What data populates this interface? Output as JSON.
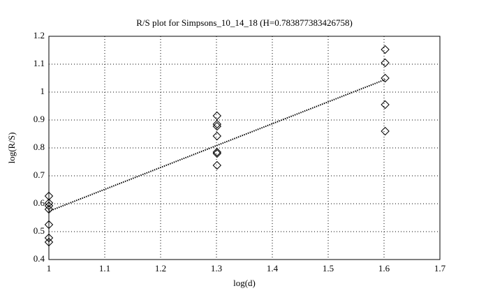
{
  "chart_data": {
    "type": "scatter",
    "title": "R/S plot for Simpsons_10_14_18 (H=0.783877383426758)",
    "x_label": "log(d)",
    "y_label": "log(R/S)",
    "xlim": [
      1,
      1.7
    ],
    "xticks": [
      1,
      1.1,
      1.2,
      1.3,
      1.4,
      1.5,
      1.6,
      1.7
    ],
    "ylim": [
      0.4,
      1.2
    ],
    "yticks": [
      0.4,
      0.5,
      0.6,
      0.7,
      0.8,
      0.9,
      1,
      1.1,
      1.2
    ],
    "grid": true,
    "series": [
      {
        "color": "#000000",
        "marker": "diamond",
        "x": [
          1,
          1,
          1,
          1,
          1,
          1,
          1,
          1.301,
          1.301,
          1.301,
          1.301,
          1.301,
          1.301,
          1.301,
          1.602,
          1.602,
          1.602,
          1.602,
          1.602
        ],
        "values": [
          0.6275,
          0.6025,
          0.5925,
          0.58,
          0.525,
          0.4775,
          0.4625,
          0.915,
          0.885,
          0.8775,
          0.8425,
          0.785,
          0.78,
          0.7375,
          1.1525,
          1.105,
          1.05,
          0.955,
          0.86
        ]
      },
      {
        "color": "#000000",
        "marker": "dotted-line",
        "x": [
          1,
          1.602
        ],
        "values": [
          0.573,
          1.045
        ]
      }
    ]
  }
}
